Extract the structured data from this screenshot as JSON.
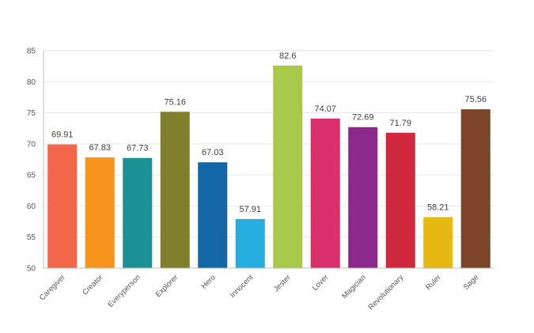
{
  "chart_data": {
    "type": "bar",
    "title": "",
    "xlabel": "",
    "ylabel": "",
    "ylim": [
      50,
      85
    ],
    "yticks": [
      50,
      55,
      60,
      65,
      70,
      75,
      80,
      85
    ],
    "grid": true,
    "legend": "none",
    "categories": [
      "Caregiver",
      "Creator",
      "Everyperson",
      "Explorer",
      "Hero",
      "Innocent",
      "Jester",
      "Lover",
      "Magician",
      "Revolutionary",
      "Ruler",
      "Sage"
    ],
    "values": [
      69.91,
      67.83,
      67.73,
      75.16,
      67.03,
      57.91,
      82.6,
      74.07,
      72.69,
      71.79,
      58.21,
      75.56
    ],
    "data_labels": [
      "69.91",
      "67.83",
      "67.73",
      "75.16",
      "67.03",
      "57.91",
      "82.6",
      "74.07",
      "72.69",
      "71.79",
      "58.21",
      "75.56"
    ],
    "colors": [
      "#f26649",
      "#f7941d",
      "#1b9196",
      "#7f7f2e",
      "#1367a7",
      "#27aee0",
      "#a8c94a",
      "#d92f6a",
      "#8b2a8c",
      "#d0283c",
      "#e6b812",
      "#7c4428"
    ]
  }
}
